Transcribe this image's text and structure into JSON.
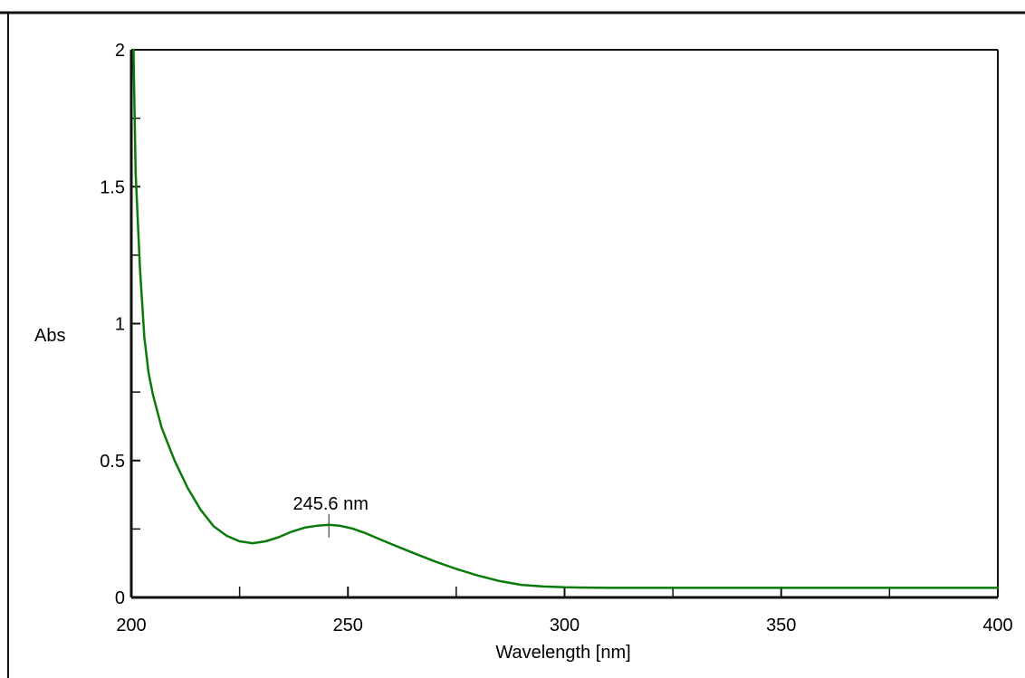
{
  "chart_data": {
    "type": "line",
    "title": "",
    "xlabel": "Wavelength [nm]",
    "ylabel": "Abs",
    "xlim": [
      200,
      400
    ],
    "ylim": [
      0,
      2
    ],
    "x_ticks": [
      200,
      250,
      300,
      350,
      400
    ],
    "x_tick_labels": [
      "200",
      "250",
      "300",
      "350",
      "400"
    ],
    "x_minor_ticks": [
      225,
      275,
      325,
      375
    ],
    "y_ticks": [
      0,
      0.5,
      1,
      1.5,
      2
    ],
    "y_tick_labels": [
      "0",
      "0.5",
      "1",
      "1.5",
      "2"
    ],
    "y_minor_ticks": [
      0.25,
      0.75,
      1.25,
      1.75
    ],
    "grid": false,
    "legend": "none",
    "series": [
      {
        "color": "#0a7a0a",
        "x": [
          200.5,
          201,
          202,
          203,
          204,
          205,
          207,
          210,
          213,
          216,
          219,
          222,
          225,
          228,
          231,
          234,
          237,
          240,
          243,
          245.6,
          248,
          251,
          254,
          257,
          260,
          265,
          270,
          275,
          280,
          285,
          290,
          295,
          300,
          310,
          320,
          340,
          360,
          380,
          400
        ],
        "y": [
          2.0,
          1.55,
          1.2,
          0.95,
          0.82,
          0.74,
          0.62,
          0.5,
          0.4,
          0.32,
          0.26,
          0.225,
          0.205,
          0.198,
          0.205,
          0.22,
          0.24,
          0.255,
          0.262,
          0.265,
          0.262,
          0.252,
          0.235,
          0.215,
          0.195,
          0.163,
          0.132,
          0.104,
          0.08,
          0.06,
          0.046,
          0.04,
          0.037,
          0.035,
          0.035,
          0.035,
          0.035,
          0.035,
          0.035
        ]
      }
    ],
    "annotations": [
      {
        "text": "245.6 nm",
        "x": 245.6,
        "y": 0.265
      }
    ]
  }
}
